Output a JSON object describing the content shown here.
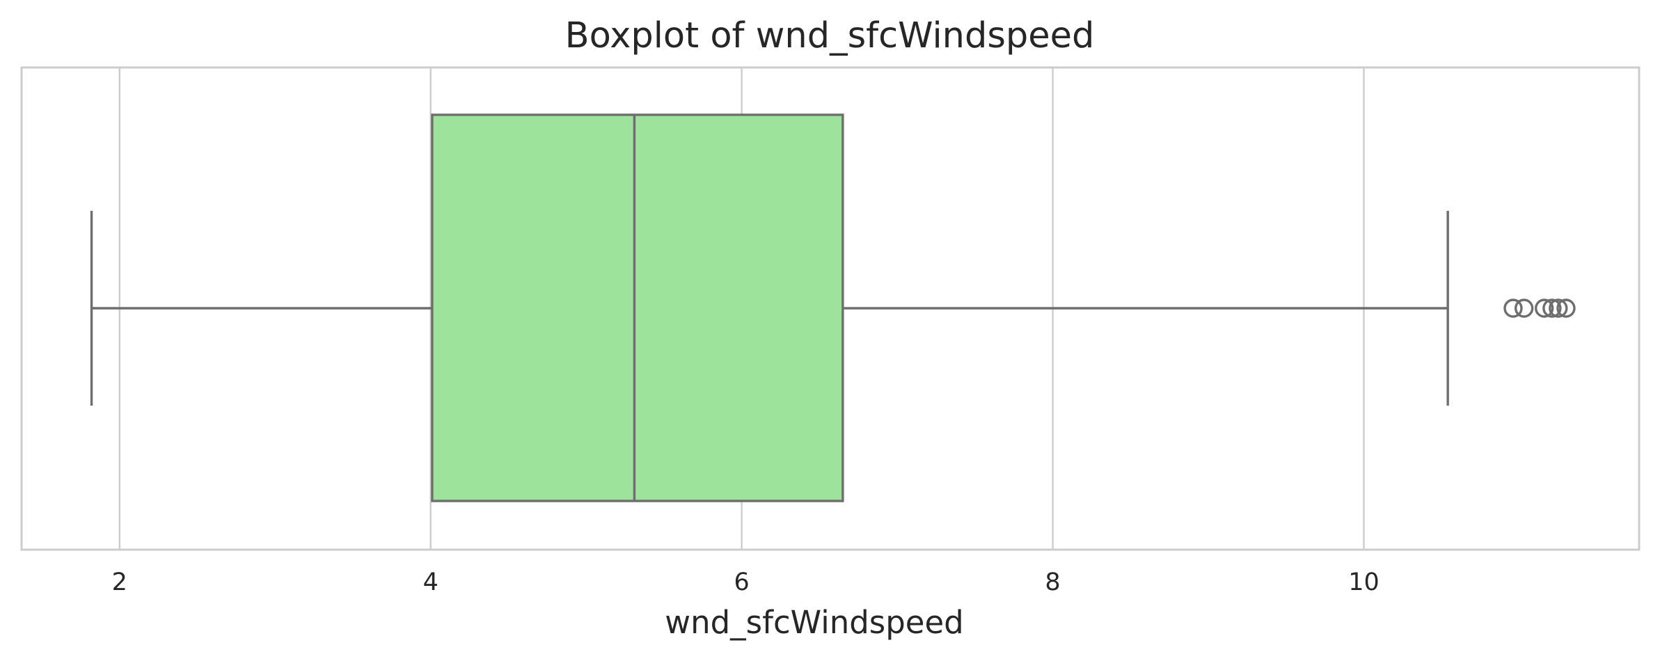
{
  "chart_data": {
    "type": "boxplot",
    "title": "Boxplot of wnd_sfcWindspeed",
    "xlabel": "wnd_sfcWindspeed",
    "ylabel": "",
    "orientation": "horizontal",
    "xlim": [
      1.37,
      11.77
    ],
    "xticks": [
      2,
      4,
      6,
      8,
      10
    ],
    "tick_labels": [
      "2",
      "4",
      "6",
      "8",
      "10"
    ],
    "grid": true,
    "box": {
      "whisker_low": 1.82,
      "q1": 4.01,
      "median": 5.31,
      "q3": 6.65,
      "whisker_high": 10.54,
      "outliers": [
        10.96,
        11.03,
        11.16,
        11.21,
        11.25,
        11.3
      ]
    },
    "colors": {
      "box_fill": "#9de39c",
      "box_line": "#6e6e6e",
      "grid": "#cccccc",
      "text": "#262626"
    }
  }
}
